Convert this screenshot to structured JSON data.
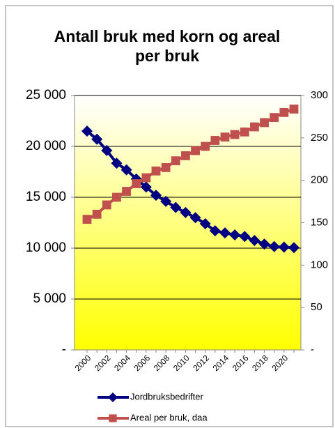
{
  "chart_data": {
    "type": "line",
    "title": "Antall bruk med korn og areal per bruk",
    "categories": [
      "2000",
      null,
      "2002",
      null,
      "2004",
      null,
      "2006",
      null,
      "2008",
      null,
      "2010",
      null,
      "2012",
      null,
      "2014",
      null,
      "2016",
      null,
      "2018",
      null,
      "2020",
      null
    ],
    "series": [
      {
        "name": "Jordbruksbedrifter",
        "color": "#000080",
        "marker": "diamond",
        "values": [
          21500,
          20700,
          19600,
          18350,
          17700,
          16800,
          16000,
          15200,
          14600,
          14000,
          13500,
          13000,
          12400,
          11700,
          11500,
          11300,
          11150,
          10750,
          10400,
          10150,
          10100,
          10050
        ]
      },
      {
        "name": "Areal per bruk, daa",
        "color": "#c0504d",
        "marker": "square",
        "axis": "y2",
        "values": [
          154,
          160,
          171,
          180,
          187,
          196,
          203,
          211,
          215,
          223,
          229,
          235,
          240,
          247,
          251,
          254,
          257,
          263,
          268,
          274,
          280,
          284
        ]
      }
    ],
    "ylim": [
      0,
      25000
    ],
    "yticks": [
      {
        "value": 0,
        "label": "-"
      },
      {
        "value": 5000,
        "label": "5 000"
      },
      {
        "value": 10000,
        "label": "10 000"
      },
      {
        "value": 15000,
        "label": "15 000"
      },
      {
        "value": 20000,
        "label": "20 000"
      },
      {
        "value": 25000,
        "label": "25 000"
      }
    ],
    "y2lim": [
      0,
      300
    ],
    "y2ticks": [
      {
        "value": 0,
        "label": "-"
      },
      50,
      100,
      150,
      200,
      250,
      300
    ],
    "grid": true,
    "legend": "bottom"
  }
}
